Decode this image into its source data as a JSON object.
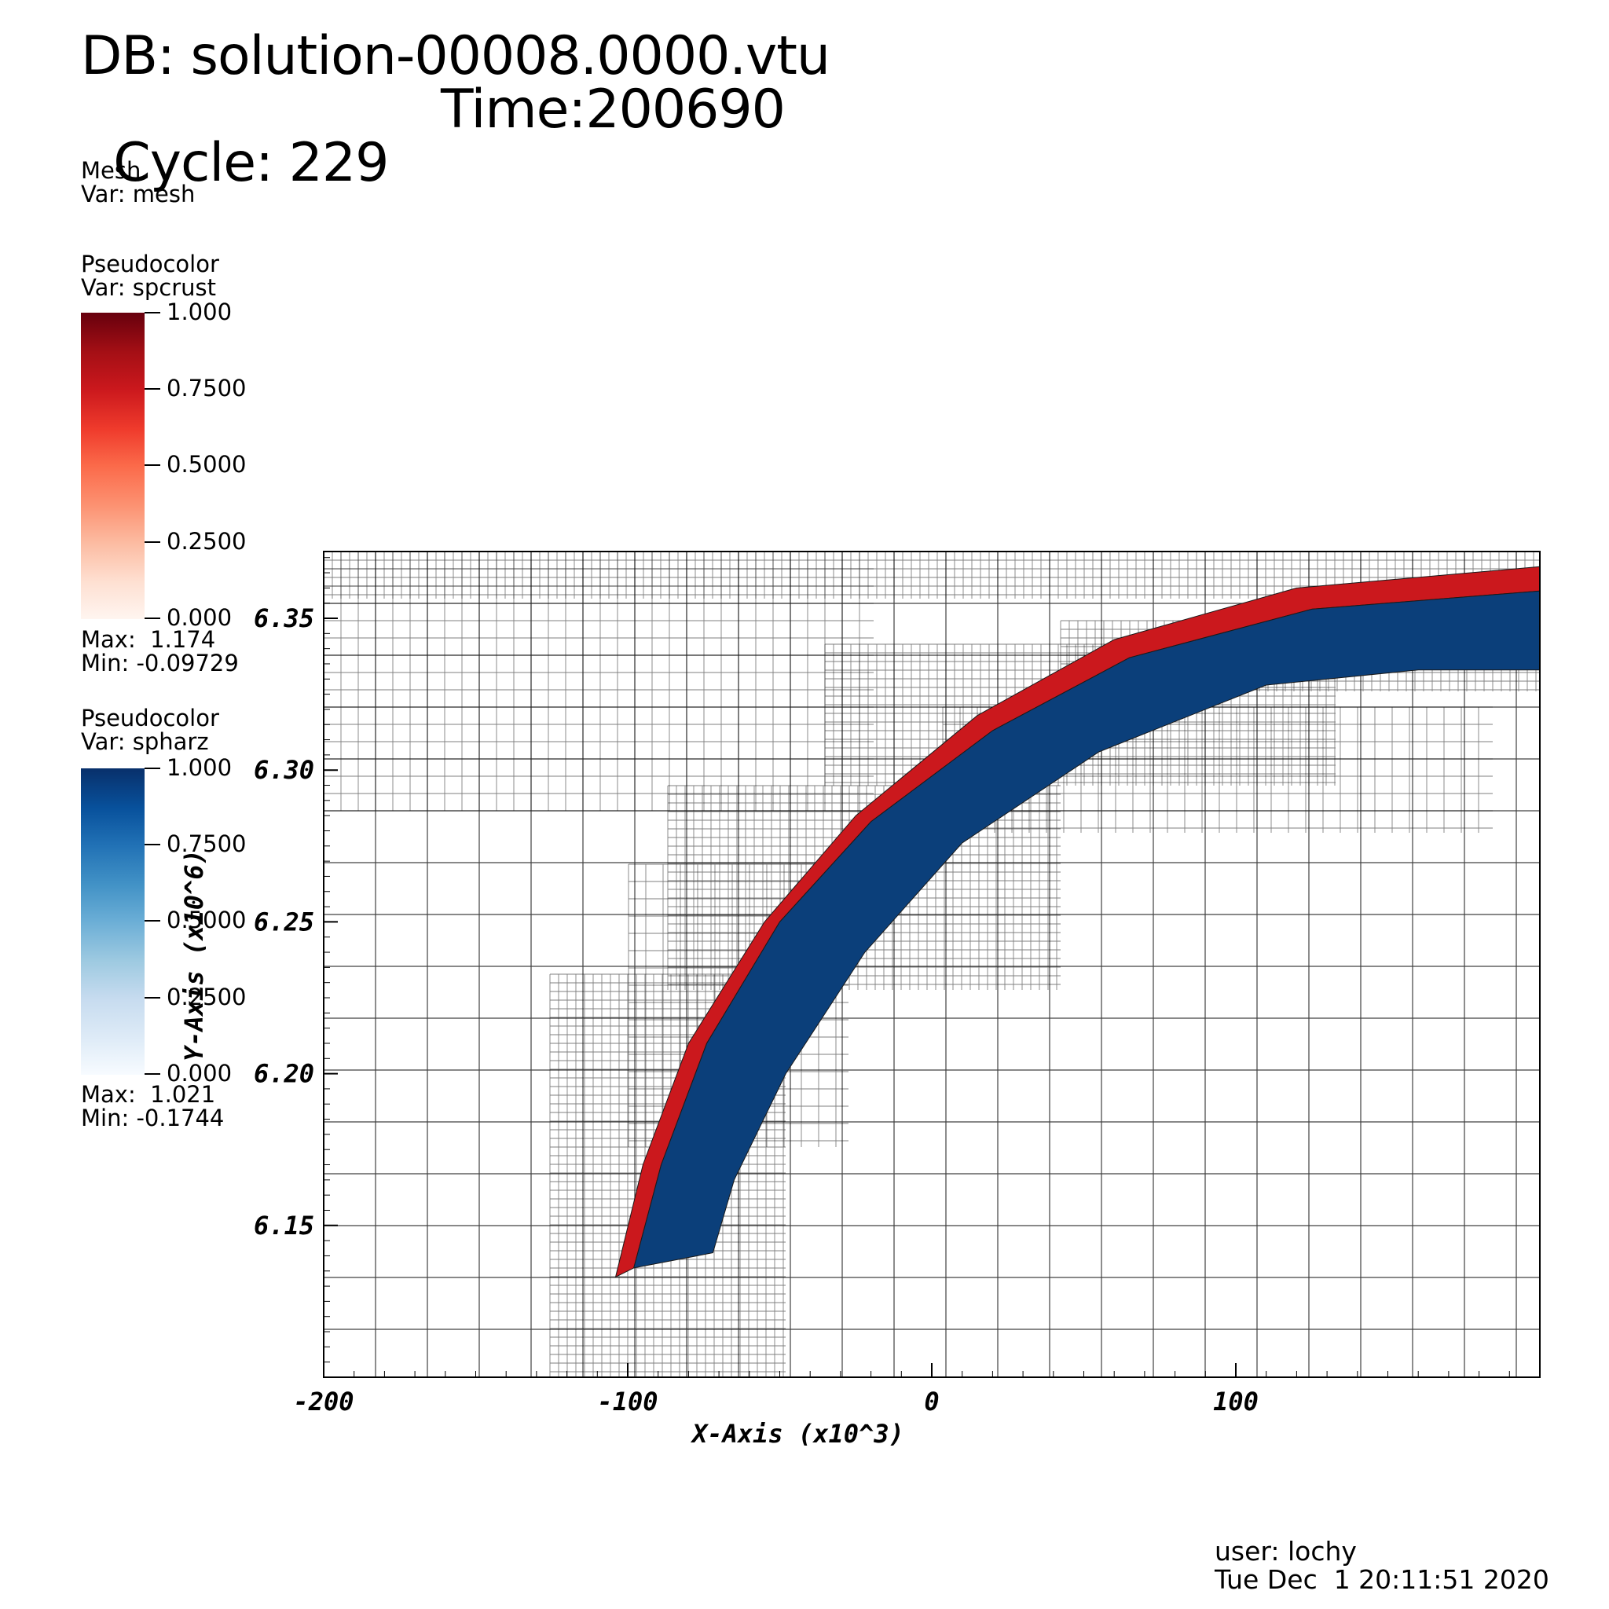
{
  "header": {
    "db": "DB: solution-00008.0000.vtu",
    "cycle": "Cycle: 229",
    "time": "Time:200690"
  },
  "legend_mesh": {
    "title": "Mesh",
    "var": "Var: mesh"
  },
  "legend_crust": {
    "title": "Pseudocolor",
    "var": "Var: spcrust",
    "ticks": [
      "1.000",
      "0.7500",
      "0.5000",
      "0.2500",
      "0.000"
    ],
    "max": "Max:  1.174",
    "min": "Min: -0.09729",
    "colors": [
      "#67000d",
      "#cb181d",
      "#fb6a4a",
      "#fcbba1",
      "#fff5f0"
    ]
  },
  "legend_harz": {
    "title": "Pseudocolor",
    "var": "Var: spharz",
    "ticks": [
      "1.000",
      "0.7500",
      "0.5000",
      "0.2500",
      "0.000"
    ],
    "max": "Max:  1.021",
    "min": "Min: -0.1744",
    "colors": [
      "#08306b",
      "#2171b5",
      "#6baed6",
      "#c6dbef",
      "#f7fbff"
    ]
  },
  "footer": {
    "user": "user: lochy",
    "date": "Tue Dec  1 20:11:51 2020"
  },
  "chart_data": {
    "type": "heatmap",
    "xlabel": "X-Axis (x10^3)",
    "ylabel": "Y-Axis (x10^6)",
    "xlim": [
      -200,
      200
    ],
    "ylim": [
      6.1,
      6.372
    ],
    "x_ticks": [
      -200,
      -100,
      0,
      100
    ],
    "x_tick_labels": [
      "-200",
      "-100",
      "0",
      "100"
    ],
    "y_ticks": [
      6.15,
      6.2,
      6.25,
      6.3,
      6.35
    ],
    "y_tick_labels": [
      "6.15",
      "6.20",
      "6.25",
      "6.30",
      "6.35"
    ],
    "fields": [
      {
        "name": "spcrust",
        "color": "#cb181d",
        "upper_edge": [
          [
            -104,
            6.133
          ],
          [
            -95,
            6.17
          ],
          [
            -80,
            6.21
          ],
          [
            -55,
            6.25
          ],
          [
            -25,
            6.285
          ],
          [
            15,
            6.318
          ],
          [
            60,
            6.343
          ],
          [
            120,
            6.36
          ],
          [
            200,
            6.367
          ]
        ],
        "lower_edge": [
          [
            -98,
            6.136
          ],
          [
            -89,
            6.17
          ],
          [
            -74,
            6.21
          ],
          [
            -50,
            6.25
          ],
          [
            -20,
            6.283
          ],
          [
            20,
            6.313
          ],
          [
            65,
            6.337
          ],
          [
            125,
            6.353
          ],
          [
            200,
            6.359
          ]
        ]
      },
      {
        "name": "spharz",
        "color": "#0b3f7a",
        "upper_edge": [
          [
            -98,
            6.136
          ],
          [
            -89,
            6.17
          ],
          [
            -74,
            6.21
          ],
          [
            -50,
            6.25
          ],
          [
            -20,
            6.283
          ],
          [
            20,
            6.313
          ],
          [
            65,
            6.337
          ],
          [
            125,
            6.353
          ],
          [
            200,
            6.359
          ]
        ],
        "lower_edge": [
          [
            -72,
            6.141
          ],
          [
            -65,
            6.165
          ],
          [
            -48,
            6.2
          ],
          [
            -22,
            6.24
          ],
          [
            10,
            6.276
          ],
          [
            55,
            6.306
          ],
          [
            110,
            6.328
          ],
          [
            160,
            6.333
          ],
          [
            200,
            6.333
          ]
        ]
      }
    ]
  }
}
